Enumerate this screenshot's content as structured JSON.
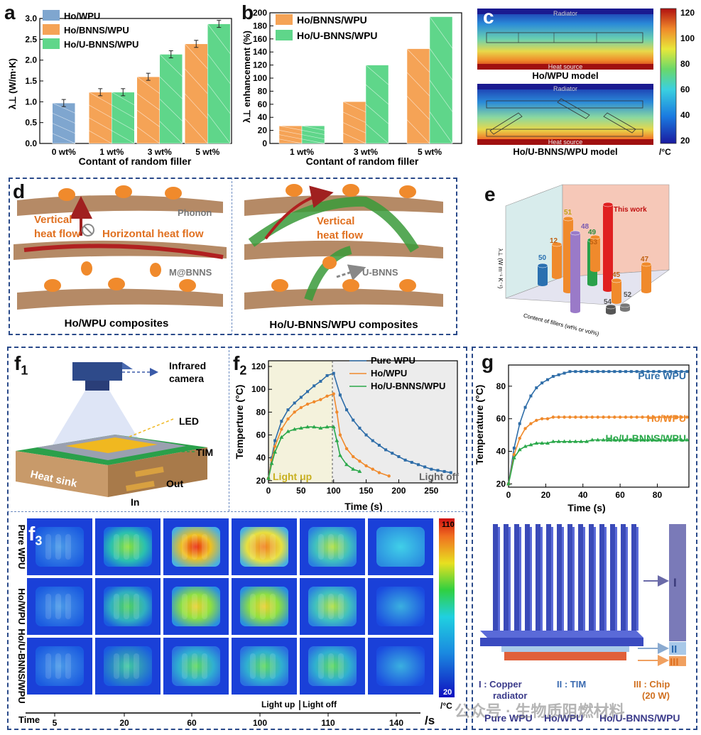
{
  "panels": {
    "a": "a",
    "b": "b",
    "c": "c",
    "d": "d",
    "e": "e",
    "f1": "f",
    "f1sub": "1",
    "f2": "f",
    "f2sub": "2",
    "f3": "f",
    "f3sub": "3",
    "g": "g"
  },
  "chart_data": [
    {
      "id": "a",
      "type": "bar",
      "ylabel": "λ⊥ (W/m·K)",
      "xlabel": "Contant of random filler",
      "categories": [
        "0 wt%",
        "1 wt%",
        "3 wt%",
        "5 wt%"
      ],
      "ylim": [
        0,
        3.0
      ],
      "yticks": [
        "0.0",
        "0.5",
        "1.0",
        "1.5",
        "2.0",
        "2.5",
        "3.0"
      ],
      "series": [
        {
          "name": "Ho/WPU",
          "color": "#7fa6cf",
          "values": [
            0.97,
            null,
            null,
            null
          ]
        },
        {
          "name": "Ho/BNNS/WPU",
          "color": "#f5a356",
          "values": [
            null,
            1.23,
            1.6,
            2.39
          ]
        },
        {
          "name": "Ho/U-BNNS/WPU",
          "color": "#5fd68a",
          "values": [
            null,
            1.23,
            2.14,
            2.87
          ]
        }
      ]
    },
    {
      "id": "b",
      "type": "bar",
      "ylabel": "λ⊥ enhancement (%)",
      "xlabel": "Contant of random filler",
      "categories": [
        "1 wt%",
        "3 wt%",
        "5 wt%"
      ],
      "ylim": [
        0,
        200
      ],
      "yticks": [
        "0",
        "20",
        "40",
        "60",
        "80",
        "100",
        "120",
        "140",
        "160",
        "180",
        "200"
      ],
      "series": [
        {
          "name": "Ho/BNNS/WPU",
          "color": "#f5a356",
          "values": [
            27,
            64,
            145
          ]
        },
        {
          "name": "Ho/U-BNNS/WPU",
          "color": "#5fd68a",
          "values": [
            27,
            120,
            194
          ]
        }
      ]
    },
    {
      "id": "f2",
      "type": "line",
      "ylabel": "Temperture (°C)",
      "xlabel": "Time (s)",
      "xticks": [
        "0",
        "50",
        "100",
        "150",
        "200",
        "250"
      ],
      "yticks": [
        "20",
        "40",
        "60",
        "80",
        "100",
        "120"
      ],
      "xlim": [
        0,
        290
      ],
      "ylim": [
        18,
        125
      ],
      "annotations": [
        "Light up",
        "Light off"
      ],
      "series": [
        {
          "name": "Pure WPU",
          "color": "#2e6da8",
          "x": [
            0,
            5,
            10,
            20,
            30,
            40,
            50,
            60,
            70,
            80,
            90,
            100,
            110,
            120,
            130,
            140,
            150,
            160,
            170,
            180,
            190,
            200,
            210,
            220,
            230,
            240,
            250,
            260,
            270,
            280
          ],
          "y": [
            22,
            40,
            55,
            72,
            82,
            88,
            93,
            98,
            103,
            107,
            112,
            114,
            95,
            82,
            73,
            66,
            60,
            55,
            51,
            47,
            44,
            41,
            38,
            36,
            34,
            32,
            30,
            29,
            28,
            27
          ]
        },
        {
          "name": "Ho/WPU",
          "color": "#f08a2c",
          "x": [
            0,
            5,
            10,
            20,
            30,
            40,
            50,
            60,
            70,
            80,
            90,
            100,
            105,
            110,
            120,
            130,
            140,
            150,
            160,
            170,
            185
          ],
          "y": [
            22,
            38,
            50,
            65,
            74,
            80,
            84,
            87,
            89,
            91,
            94,
            96,
            80,
            60,
            48,
            41,
            37,
            33,
            30,
            27,
            24
          ]
        },
        {
          "name": "Ho/U-BNNS/WPU",
          "color": "#2aa84a",
          "x": [
            0,
            5,
            10,
            20,
            30,
            40,
            50,
            60,
            70,
            80,
            90,
            100,
            105,
            110,
            120,
            130,
            140
          ],
          "y": [
            22,
            35,
            45,
            58,
            63,
            65,
            66,
            67,
            67,
            66,
            67,
            67,
            55,
            42,
            34,
            30,
            28
          ]
        }
      ]
    },
    {
      "id": "g",
      "type": "line",
      "ylabel": "Temperature (°C)",
      "xlabel": "Time (s)",
      "xticks": [
        "0",
        "20",
        "40",
        "60",
        "80"
      ],
      "yticks": [
        "20",
        "40",
        "60",
        "80"
      ],
      "xlim": [
        0,
        97
      ],
      "ylim": [
        18,
        93
      ],
      "series": [
        {
          "name": "Pure WPU",
          "color": "#2e6da8",
          "x": [
            0,
            3,
            6,
            9,
            12,
            15,
            18,
            21,
            24,
            27,
            30,
            33,
            36,
            39,
            42,
            45,
            48,
            51,
            54,
            57,
            60,
            63,
            66,
            69,
            72,
            75,
            78,
            81,
            84,
            87,
            90,
            93,
            96
          ],
          "y": [
            20,
            42,
            57,
            67,
            74,
            79,
            82,
            84,
            86,
            87,
            88,
            89,
            89,
            89,
            89,
            89,
            89,
            89,
            89,
            89,
            89,
            89,
            89,
            89,
            89,
            89,
            89,
            89,
            89,
            89,
            89,
            89,
            89
          ]
        },
        {
          "name": "Ho/WPU",
          "color": "#f08a2c",
          "x": [
            0,
            3,
            6,
            9,
            12,
            15,
            18,
            21,
            24,
            27,
            30,
            33,
            36,
            39,
            42,
            45,
            48,
            51,
            54,
            57,
            60,
            63,
            66,
            69,
            72,
            75,
            78,
            81,
            84,
            87,
            90,
            93,
            96
          ],
          "y": [
            20,
            38,
            48,
            54,
            57,
            59,
            60,
            60,
            61,
            61,
            61,
            61,
            61,
            61,
            61,
            61,
            61,
            61,
            61,
            61,
            61,
            61,
            61,
            61,
            61,
            61,
            61,
            61,
            61,
            61,
            61,
            61,
            61
          ]
        },
        {
          "name": "Ho/U-BNNS/WPU",
          "color": "#2aa84a",
          "x": [
            0,
            3,
            6,
            9,
            12,
            15,
            18,
            21,
            24,
            27,
            30,
            33,
            36,
            39,
            42,
            45,
            48,
            51,
            54,
            57,
            60,
            63,
            66,
            69,
            72,
            75,
            78,
            81,
            84,
            87,
            90,
            93,
            96
          ],
          "y": [
            20,
            36,
            41,
            43,
            44,
            45,
            45,
            45,
            46,
            46,
            46,
            46,
            46,
            46,
            46,
            47,
            47,
            47,
            47,
            47,
            47,
            47,
            47,
            47,
            47,
            47,
            47,
            47,
            47,
            47,
            47,
            47,
            47
          ]
        }
      ]
    },
    {
      "id": "e",
      "type": "bar3d",
      "ylabel": "λ⊥ (W m⁻¹ K⁻¹)",
      "xlabel": "Content of fillers (wt% or vol%)",
      "labels": [
        "50",
        "12",
        "51",
        "48",
        "49",
        "53",
        "This work",
        "47",
        "45",
        "52",
        "54"
      ]
    }
  ],
  "c": {
    "radiator": "Radiator",
    "heat_source": "Heat source",
    "model1": "Ho/WPU model",
    "model2": "Ho/U-BNNS/WPU model",
    "scale": [
      "120",
      "100",
      "80",
      "60",
      "40",
      "20"
    ],
    "unit": "/°C"
  },
  "d": {
    "vertical": "Vertical",
    "heat_flow": "heat flow",
    "horizontal": "Horizontal heat flow",
    "phonon": "Phonon",
    "mbnns": "M@BNNS",
    "vertical2": "Vertical",
    "heat_flow2": "heat flow",
    "ubnns": "U-BNNS",
    "cap1": "Ho/WPU composites",
    "cap2": "Ho/U-BNNS/WPU composites"
  },
  "f1": {
    "camera1": "Infrared",
    "camera2": "camera",
    "led": "LED",
    "tim": "TIM",
    "heat_sink": "Heat sink",
    "out": "Out",
    "in": "In"
  },
  "f3": {
    "rows": [
      "Pure WPU",
      "Ho/WPU",
      "Ho/U-BNNS/WPU"
    ],
    "time_label": "Time",
    "times": [
      "5",
      "20",
      "60",
      "100",
      "110",
      "140"
    ],
    "unit": "/s",
    "scale_max": "110",
    "scale_min": "20",
    "scale_unit": "/°C",
    "light_up": "Light up",
    "light_off": "Light off"
  },
  "g2": {
    "I": "I",
    "II": "II",
    "III": "III",
    "cap1a": "I : Copper",
    "cap1b": "radiator",
    "cap2": "II : TIM",
    "cap3a": "III : Chip",
    "cap3b": "(20 W)",
    "bottom1": "Pure WPU",
    "bottom2": "Ho/WPU",
    "bottom3": "Ho/U-BNNS/WPU"
  },
  "watermark": "公众号 · 生物质阻燃材料"
}
